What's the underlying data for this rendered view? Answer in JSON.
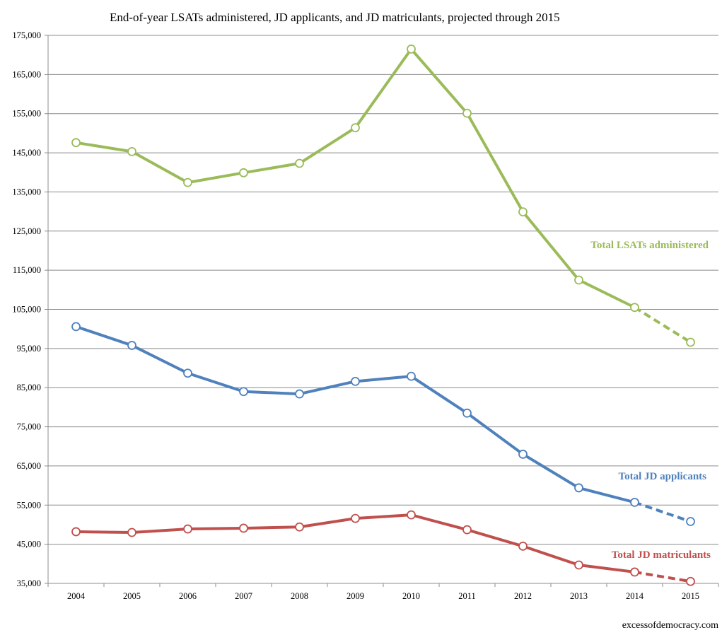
{
  "chart_data": {
    "type": "line",
    "title": "End-of-year LSATs administered, JD applicants, and JD matriculants, projected through 2015",
    "xlabel": "",
    "ylabel": "",
    "categories": [
      "2004",
      "2005",
      "2006",
      "2007",
      "2008",
      "2009",
      "2010",
      "2011",
      "2012",
      "2013",
      "2014",
      "2015"
    ],
    "ylim": [
      35000,
      175000
    ],
    "yticks": [
      35000,
      45000,
      55000,
      65000,
      75000,
      85000,
      95000,
      105000,
      115000,
      125000,
      135000,
      145000,
      155000,
      165000,
      175000
    ],
    "ytick_labels": [
      "35,000",
      "45,000",
      "55,000",
      "65,000",
      "75,000",
      "85,000",
      "95,000",
      "105,000",
      "115,000",
      "125,000",
      "135,000",
      "145,000",
      "155,000",
      "165,000",
      "175,000"
    ],
    "grid": true,
    "projected_from": "2014",
    "series": [
      {
        "name": "Total LSATs administered",
        "color": "#9bbb59",
        "values": [
          147600,
          145300,
          137400,
          139900,
          142300,
          151400,
          171500,
          155100,
          129900,
          112500,
          105500,
          96600
        ]
      },
      {
        "name": "Total JD applicants",
        "color": "#4f81bd",
        "values": [
          100600,
          95800,
          88700,
          84000,
          83400,
          86600,
          87900,
          78500,
          68000,
          59400,
          55700,
          50800
        ]
      },
      {
        "name": "Total JD matriculants",
        "color": "#c0504d",
        "values": [
          48200,
          48000,
          48900,
          49100,
          49400,
          51600,
          52500,
          48700,
          44500,
          39700,
          37900,
          35500
        ]
      }
    ],
    "credit": "excessofdemocracy.com"
  }
}
